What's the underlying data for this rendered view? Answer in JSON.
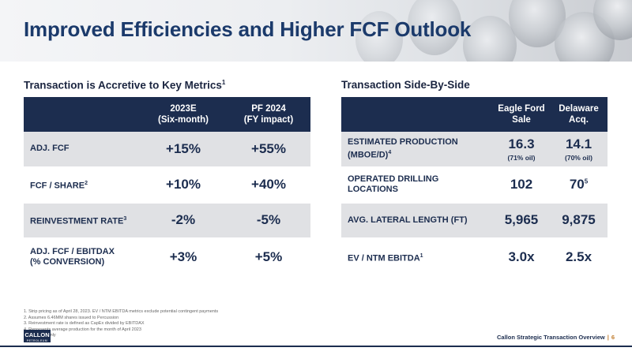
{
  "title": "Improved Efficiencies and Higher FCF Outlook",
  "left_section": {
    "title": "Transaction is Accretive to Key Metrics",
    "title_sup": "1",
    "columns": [
      {
        "line1": "2023E",
        "line2": "(Six-month)"
      },
      {
        "line1": "PF 2024",
        "line2": "(FY impact)"
      }
    ],
    "rows": [
      {
        "label": "ADJ. FCF",
        "sup": "",
        "values": [
          "+15%",
          "+55%"
        ]
      },
      {
        "label": "FCF / SHARE",
        "sup": "2",
        "values": [
          "+10%",
          "+40%"
        ]
      },
      {
        "label": "REINVESTMENT RATE",
        "sup": "3",
        "values": [
          "-2%",
          "-5%"
        ]
      },
      {
        "label": "ADJ. FCF / EBITDAX",
        "label2": "(% CONVERSION)",
        "sup": "",
        "values": [
          "+3%",
          "+5%"
        ]
      }
    ]
  },
  "right_section": {
    "title": "Transaction Side-By-Side",
    "columns": [
      {
        "line1": "Eagle Ford",
        "line2": "Sale"
      },
      {
        "line1": "Delaware",
        "line2": "Acq."
      }
    ],
    "rows": [
      {
        "label": "ESTIMATED PRODUCTION",
        "label2": "(MBOE/D)",
        "sup": "4",
        "values": [
          "16.3",
          "14.1"
        ],
        "subs": [
          "(71% oil)",
          "(70% oil)"
        ]
      },
      {
        "label": "OPERATED DRILLING",
        "label2": "LOCATIONS",
        "sup": "",
        "values": [
          "102",
          "70"
        ],
        "value_sups": [
          "",
          "5"
        ]
      },
      {
        "label": "AVG. LATERAL LENGTH (FT)",
        "sup": "",
        "values": [
          "5,965",
          "9,875"
        ]
      },
      {
        "label": "EV / NTM EBITDA",
        "sup": "1",
        "values": [
          "3.0x",
          "2.5x"
        ]
      }
    ]
  },
  "footnotes": [
    "1.  Strip pricing as of April 28, 2023. EV / NTM EBITDA metrics exclude potential contingent payments",
    "2.  Assumes 6.46MM shares issued to Percussion",
    "3.  Reinvestment rate is defined as CapEx divided by EBITDAX",
    "4.  Represents average production for the month of April 2023",
    "5.  Operated only"
  ],
  "footer": {
    "logo_text": "CALLON",
    "logo_tagline": "PETROLEUM",
    "text": "Callon Strategic Transaction Overview",
    "separator": "|",
    "page": "6"
  },
  "colors": {
    "navy": "#1c2d4f",
    "title_blue": "#1b3a6b",
    "shade": "#e0e1e4",
    "accent": "#c07b2c"
  },
  "icons": {
    "header_art": "pipes-image"
  }
}
